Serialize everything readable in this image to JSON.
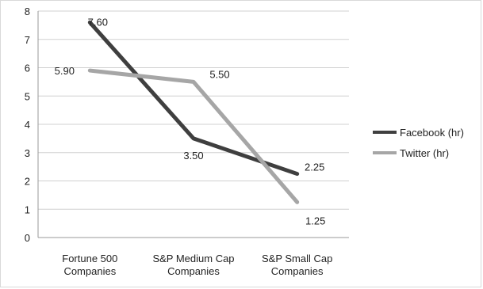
{
  "chart_data": {
    "type": "line",
    "title": "",
    "xlabel": "",
    "ylabel": "",
    "ylim": [
      0,
      8
    ],
    "yticks": [
      0,
      1,
      2,
      3,
      4,
      5,
      6,
      7,
      8
    ],
    "grid": true,
    "legend_position": "right",
    "categories": [
      [
        "Fortune 500",
        "Companies"
      ],
      [
        "S&P Medium Cap",
        "Companies"
      ],
      [
        "S&P Small Cap",
        "Companies"
      ]
    ],
    "series": [
      {
        "name": "Facebook (hr)",
        "color": "#3f3f3f",
        "values": [
          7.6,
          3.5,
          2.25
        ],
        "labels": [
          "7.60",
          "3.50",
          "2.25"
        ]
      },
      {
        "name": "Twitter (hr)",
        "color": "#a6a6a6",
        "values": [
          5.9,
          5.5,
          1.25
        ],
        "labels": [
          "5.90",
          "5.50",
          "1.25"
        ]
      }
    ]
  }
}
